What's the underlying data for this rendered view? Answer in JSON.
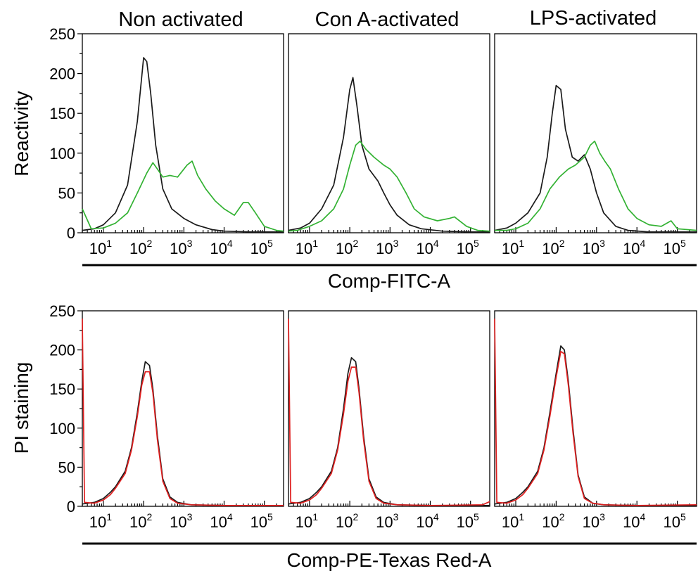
{
  "chart_data": [
    {
      "type": "line",
      "title": "Non activated",
      "ylabel": "Reactivity",
      "xlabel": "Comp-FITC-A",
      "x_scale": "log",
      "xlim": [
        3,
        300000
      ],
      "ylim": [
        0,
        250
      ],
      "yticks": [
        "0",
        "50",
        "100",
        "150",
        "200",
        "250"
      ],
      "xticks": [
        "10",
        "10",
        "10",
        "10",
        "10"
      ],
      "xtick_exponents": [
        "1",
        "2",
        "3",
        "4",
        "5"
      ],
      "series": [
        {
          "color": "#1a1a1a",
          "points": [
            [
              3,
              3
            ],
            [
              6,
              5
            ],
            [
              10,
              10
            ],
            [
              20,
              25
            ],
            [
              40,
              60
            ],
            [
              70,
              140
            ],
            [
              100,
              220
            ],
            [
              120,
              215
            ],
            [
              150,
              175
            ],
            [
              200,
              110
            ],
            [
              300,
              55
            ],
            [
              500,
              30
            ],
            [
              1000,
              18
            ],
            [
              2000,
              10
            ],
            [
              5000,
              4
            ],
            [
              10000,
              2
            ],
            [
              50000,
              1
            ],
            [
              300000,
              1
            ]
          ]
        },
        {
          "color": "#33b233",
          "points": [
            [
              3,
              30
            ],
            [
              5,
              5
            ],
            [
              10,
              6
            ],
            [
              20,
              12
            ],
            [
              40,
              25
            ],
            [
              70,
              50
            ],
            [
              120,
              75
            ],
            [
              170,
              88
            ],
            [
              220,
              80
            ],
            [
              300,
              70
            ],
            [
              450,
              72
            ],
            [
              700,
              70
            ],
            [
              1200,
              85
            ],
            [
              1600,
              90
            ],
            [
              2200,
              72
            ],
            [
              3500,
              55
            ],
            [
              6000,
              40
            ],
            [
              10000,
              30
            ],
            [
              18000,
              22
            ],
            [
              30000,
              38
            ],
            [
              40000,
              38
            ],
            [
              60000,
              25
            ],
            [
              100000,
              8
            ],
            [
              200000,
              3
            ],
            [
              300000,
              2
            ]
          ]
        }
      ]
    },
    {
      "type": "line",
      "title": "Con A-activated",
      "x_scale": "log",
      "xlim": [
        3,
        300000
      ],
      "ylim": [
        0,
        250
      ],
      "xticks": [
        "10",
        "10",
        "10",
        "10",
        "10"
      ],
      "xtick_exponents": [
        "1",
        "2",
        "3",
        "4",
        "5"
      ],
      "series": [
        {
          "color": "#1a1a1a",
          "points": [
            [
              3,
              3
            ],
            [
              6,
              6
            ],
            [
              10,
              12
            ],
            [
              20,
              30
            ],
            [
              40,
              60
            ],
            [
              70,
              120
            ],
            [
              100,
              180
            ],
            [
              120,
              195
            ],
            [
              150,
              160
            ],
            [
              200,
              110
            ],
            [
              300,
              80
            ],
            [
              500,
              65
            ],
            [
              700,
              50
            ],
            [
              1000,
              35
            ],
            [
              1500,
              22
            ],
            [
              3000,
              10
            ],
            [
              6000,
              5
            ],
            [
              20000,
              2
            ],
            [
              100000,
              1
            ],
            [
              300000,
              1
            ]
          ]
        },
        {
          "color": "#33b233",
          "points": [
            [
              3,
              2
            ],
            [
              5,
              3
            ],
            [
              10,
              8
            ],
            [
              20,
              15
            ],
            [
              40,
              30
            ],
            [
              70,
              55
            ],
            [
              100,
              85
            ],
            [
              140,
              110
            ],
            [
              180,
              115
            ],
            [
              250,
              105
            ],
            [
              400,
              95
            ],
            [
              700,
              85
            ],
            [
              1000,
              80
            ],
            [
              1500,
              70
            ],
            [
              2500,
              50
            ],
            [
              4000,
              30
            ],
            [
              7000,
              20
            ],
            [
              15000,
              15
            ],
            [
              30000,
              18
            ],
            [
              40000,
              20
            ],
            [
              80000,
              8
            ],
            [
              150000,
              3
            ],
            [
              300000,
              2
            ]
          ]
        }
      ]
    },
    {
      "type": "line",
      "title": "LPS-activated",
      "x_scale": "log",
      "xlim": [
        3,
        300000
      ],
      "ylim": [
        0,
        250
      ],
      "xticks": [
        "10",
        "10",
        "10",
        "10",
        "10"
      ],
      "xtick_exponents": [
        "1",
        "2",
        "3",
        "4",
        "5"
      ],
      "series": [
        {
          "color": "#1a1a1a",
          "points": [
            [
              3,
              3
            ],
            [
              6,
              6
            ],
            [
              10,
              12
            ],
            [
              20,
              25
            ],
            [
              40,
              50
            ],
            [
              60,
              95
            ],
            [
              80,
              150
            ],
            [
              100,
              185
            ],
            [
              130,
              180
            ],
            [
              170,
              130
            ],
            [
              250,
              95
            ],
            [
              350,
              90
            ],
            [
              500,
              98
            ],
            [
              700,
              80
            ],
            [
              1000,
              50
            ],
            [
              1500,
              25
            ],
            [
              3000,
              8
            ],
            [
              6000,
              3
            ],
            [
              20000,
              1
            ],
            [
              300000,
              1
            ]
          ]
        },
        {
          "color": "#33b233",
          "points": [
            [
              3,
              3
            ],
            [
              6,
              3
            ],
            [
              10,
              5
            ],
            [
              20,
              12
            ],
            [
              40,
              30
            ],
            [
              70,
              55
            ],
            [
              120,
              70
            ],
            [
              200,
              80
            ],
            [
              300,
              85
            ],
            [
              500,
              95
            ],
            [
              700,
              110
            ],
            [
              900,
              115
            ],
            [
              1200,
              100
            ],
            [
              1600,
              90
            ],
            [
              2200,
              80
            ],
            [
              3500,
              55
            ],
            [
              6000,
              30
            ],
            [
              10000,
              18
            ],
            [
              20000,
              10
            ],
            [
              40000,
              8
            ],
            [
              70000,
              15
            ],
            [
              100000,
              5
            ],
            [
              300000,
              3
            ]
          ]
        }
      ]
    },
    {
      "type": "line",
      "ylabel": "PI staining",
      "xlabel": "Comp-PE-Texas Red-A",
      "x_scale": "log",
      "xlim": [
        3,
        300000
      ],
      "ylim": [
        0,
        250
      ],
      "yticks": [
        "0",
        "50",
        "100",
        "150",
        "200",
        "250"
      ],
      "xticks": [
        "10",
        "10",
        "10",
        "10",
        "10"
      ],
      "xtick_exponents": [
        "1",
        "2",
        "3",
        "4",
        "5"
      ],
      "series": [
        {
          "color": "#1a1a1a",
          "points": [
            [
              3,
              3
            ],
            [
              6,
              5
            ],
            [
              10,
              10
            ],
            [
              15,
              18
            ],
            [
              20,
              25
            ],
            [
              35,
              45
            ],
            [
              50,
              75
            ],
            [
              70,
              120
            ],
            [
              90,
              160
            ],
            [
              110,
              185
            ],
            [
              140,
              180
            ],
            [
              170,
              150
            ],
            [
              220,
              90
            ],
            [
              300,
              35
            ],
            [
              450,
              12
            ],
            [
              700,
              5
            ],
            [
              1500,
              2
            ],
            [
              10000,
              1
            ],
            [
              300000,
              1
            ]
          ]
        },
        {
          "color": "#e02020",
          "points": [
            [
              3,
              240
            ],
            [
              3.4,
              5
            ],
            [
              6,
              4
            ],
            [
              10,
              8
            ],
            [
              15,
              15
            ],
            [
              20,
              23
            ],
            [
              35,
              42
            ],
            [
              50,
              72
            ],
            [
              70,
              115
            ],
            [
              90,
              155
            ],
            [
              110,
              172
            ],
            [
              140,
              172
            ],
            [
              170,
              145
            ],
            [
              220,
              85
            ],
            [
              300,
              32
            ],
            [
              450,
              10
            ],
            [
              700,
              4
            ],
            [
              1500,
              2
            ],
            [
              10000,
              1
            ],
            [
              300000,
              1
            ]
          ]
        }
      ]
    },
    {
      "type": "line",
      "x_scale": "log",
      "xlim": [
        3,
        300000
      ],
      "ylim": [
        0,
        250
      ],
      "xticks": [
        "10",
        "10",
        "10",
        "10",
        "10"
      ],
      "xtick_exponents": [
        "1",
        "2",
        "3",
        "4",
        "5"
      ],
      "series": [
        {
          "color": "#1a1a1a",
          "points": [
            [
              3,
              3
            ],
            [
              6,
              5
            ],
            [
              10,
              10
            ],
            [
              15,
              18
            ],
            [
              20,
              25
            ],
            [
              35,
              45
            ],
            [
              50,
              75
            ],
            [
              70,
              125
            ],
            [
              90,
              170
            ],
            [
              110,
              190
            ],
            [
              140,
              185
            ],
            [
              170,
              150
            ],
            [
              220,
              90
            ],
            [
              300,
              35
            ],
            [
              450,
              12
            ],
            [
              700,
              5
            ],
            [
              1500,
              2
            ],
            [
              10000,
              1
            ],
            [
              300000,
              1
            ]
          ]
        },
        {
          "color": "#e02020",
          "points": [
            [
              3,
              240
            ],
            [
              3.4,
              5
            ],
            [
              6,
              4
            ],
            [
              10,
              8
            ],
            [
              15,
              15
            ],
            [
              20,
              23
            ],
            [
              35,
              42
            ],
            [
              50,
              72
            ],
            [
              70,
              118
            ],
            [
              90,
              160
            ],
            [
              110,
              178
            ],
            [
              140,
              178
            ],
            [
              170,
              145
            ],
            [
              220,
              85
            ],
            [
              300,
              32
            ],
            [
              450,
              10
            ],
            [
              700,
              4
            ],
            [
              1500,
              2
            ],
            [
              10000,
              1
            ],
            [
              200000,
              2
            ],
            [
              300000,
              6
            ]
          ]
        }
      ]
    },
    {
      "type": "line",
      "x_scale": "log",
      "xlim": [
        3,
        300000
      ],
      "ylim": [
        0,
        250
      ],
      "xticks": [
        "10",
        "10",
        "10",
        "10",
        "10"
      ],
      "xtick_exponents": [
        "1",
        "2",
        "3",
        "4",
        "5"
      ],
      "series": [
        {
          "color": "#1a1a1a",
          "points": [
            [
              3,
              3
            ],
            [
              6,
              5
            ],
            [
              10,
              10
            ],
            [
              15,
              18
            ],
            [
              20,
              25
            ],
            [
              35,
              45
            ],
            [
              50,
              75
            ],
            [
              70,
              120
            ],
            [
              100,
              170
            ],
            [
              130,
              205
            ],
            [
              160,
              200
            ],
            [
              200,
              160
            ],
            [
              260,
              100
            ],
            [
              350,
              40
            ],
            [
              500,
              12
            ],
            [
              800,
              4
            ],
            [
              1500,
              2
            ],
            [
              10000,
              1
            ],
            [
              300000,
              1
            ]
          ]
        },
        {
          "color": "#e02020",
          "points": [
            [
              3,
              240
            ],
            [
              3.4,
              5
            ],
            [
              6,
              4
            ],
            [
              10,
              8
            ],
            [
              15,
              15
            ],
            [
              20,
              23
            ],
            [
              35,
              42
            ],
            [
              50,
              72
            ],
            [
              70,
              115
            ],
            [
              100,
              165
            ],
            [
              130,
              198
            ],
            [
              160,
              195
            ],
            [
              200,
              155
            ],
            [
              260,
              95
            ],
            [
              350,
              38
            ],
            [
              500,
              10
            ],
            [
              800,
              4
            ],
            [
              1500,
              2
            ],
            [
              10000,
              1
            ],
            [
              300000,
              2
            ]
          ]
        }
      ]
    }
  ]
}
